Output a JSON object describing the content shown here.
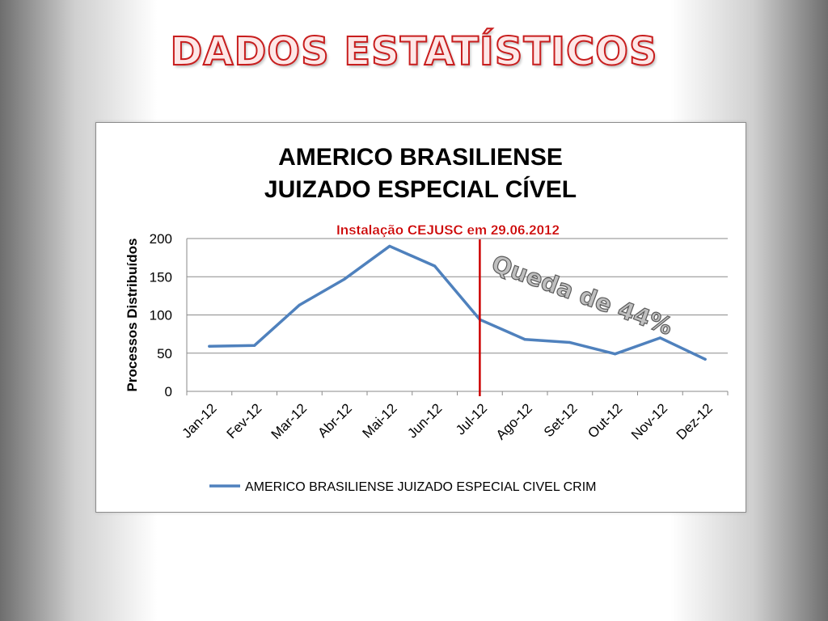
{
  "slide": {
    "title": "DADOS ESTATÍSTICOS"
  },
  "chart_data": {
    "type": "line",
    "title": "AMERICO BRASILIENSE JUIZADO ESPECIAL CÍVEL",
    "title_lines": [
      "AMERICO BRASILIENSE",
      "JUIZADO ESPECIAL CÍVEL"
    ],
    "xlabel": "",
    "ylabel": "Processos Distribuídos",
    "ylim": [
      0,
      200
    ],
    "yticks": [
      0,
      50,
      100,
      150,
      200
    ],
    "grid": true,
    "legend_position": "bottom",
    "categories": [
      "Jan-12",
      "Fev-12",
      "Mar-12",
      "Abr-12",
      "Mai-12",
      "Jun-12",
      "Jul-12",
      "Ago-12",
      "Set-12",
      "Out-12",
      "Nov-12",
      "Dez-12"
    ],
    "series": [
      {
        "name": "AMERICO BRASILIENSE JUIZADO ESPECIAL CIVEL CRIM",
        "color": "#4f81bd",
        "values": [
          59,
          60,
          113,
          147,
          190,
          164,
          94,
          68,
          64,
          49,
          70,
          42
        ]
      }
    ],
    "annotations": {
      "marker_text": "Instalação CEJUSC em 29.06.2012",
      "marker_x": 6.5,
      "marker_color": "#cc0000",
      "drop_text": "Queda de 44%"
    }
  }
}
